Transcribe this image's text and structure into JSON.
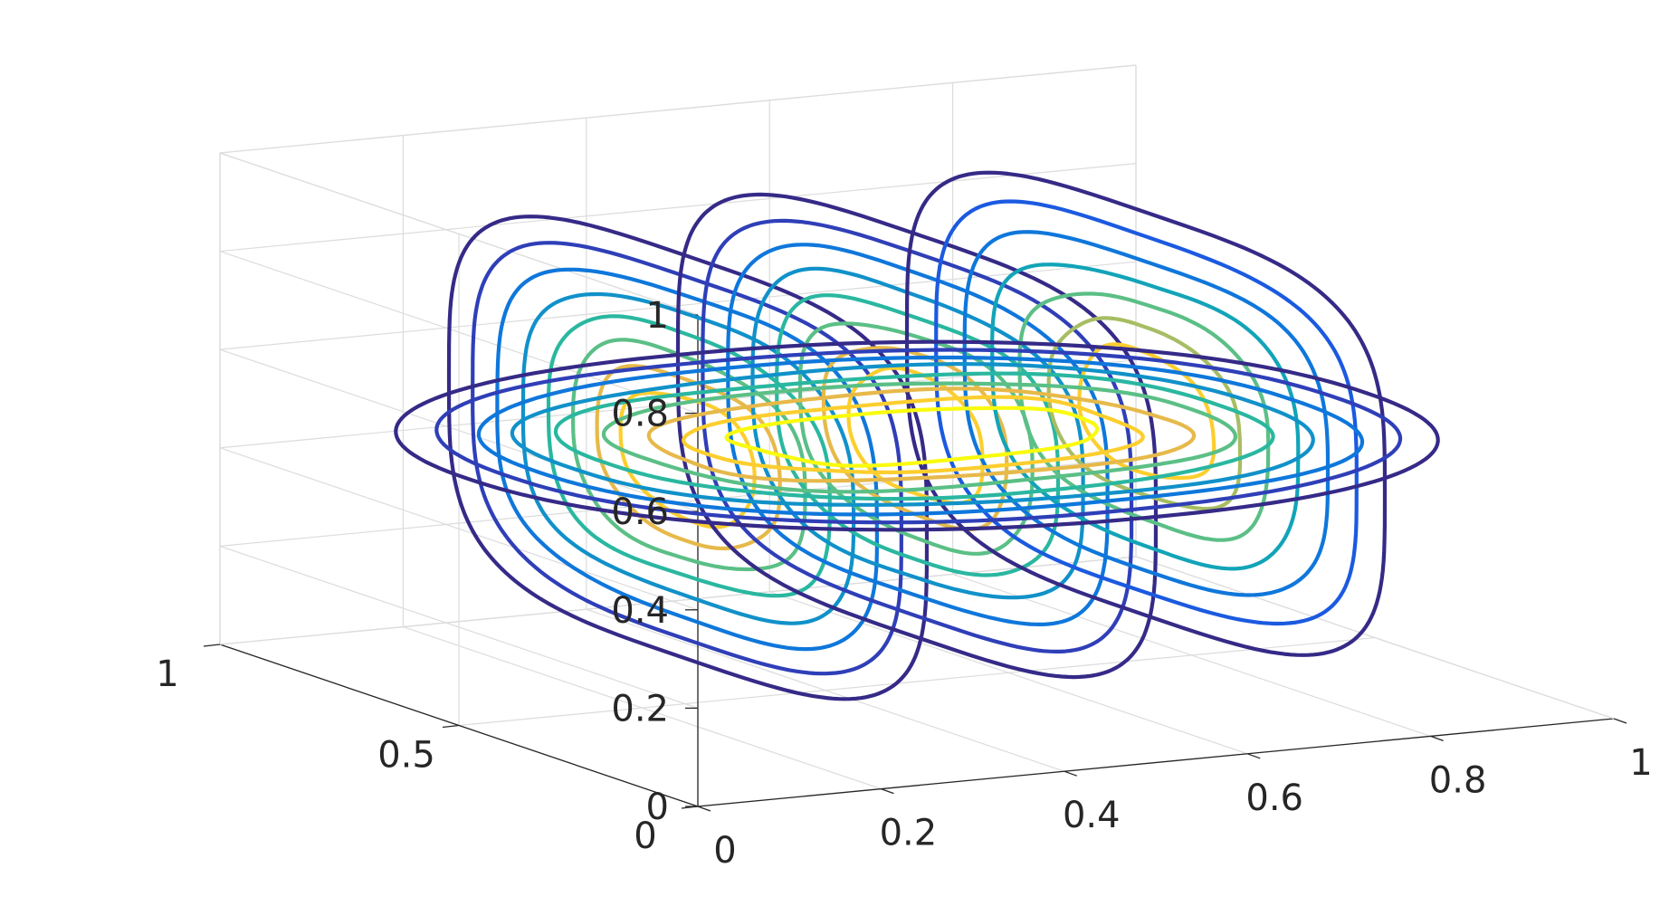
{
  "chart_data": {
    "type": "contour3d",
    "title": "",
    "xlabel": "",
    "ylabel": "",
    "zlabel": "",
    "xlim": [
      0,
      1
    ],
    "ylim": [
      0,
      1
    ],
    "zlim": [
      0,
      1
    ],
    "grid": true,
    "x_ticks": [
      "0",
      "0.2",
      "0.4",
      "0.6",
      "0.8",
      "1"
    ],
    "y_ticks": [
      "0",
      "0.5",
      "1"
    ],
    "z_ticks": [
      "0",
      "0.2",
      "0.4",
      "0.6",
      "0.8",
      "1"
    ],
    "x_tick_values": [
      0,
      0.2,
      0.4,
      0.6,
      0.8,
      1
    ],
    "y_tick_values": [
      0,
      0.5,
      1
    ],
    "z_tick_values": [
      0,
      0.2,
      0.4,
      0.6,
      0.8,
      1
    ],
    "colormap": [
      "#352a87",
      "#2f3fb8",
      "#1b5ae0",
      "#0f77db",
      "#1191c9",
      "#12a4b8",
      "#2ab7a0",
      "#5bbf86",
      "#a7bd63",
      "#e6b94a",
      "#fcce2e",
      "#f9fb0e"
    ],
    "slices": [
      {
        "plane": "x",
        "position": 0.25,
        "levels": 8
      },
      {
        "plane": "x",
        "position": 0.5,
        "levels": 8
      },
      {
        "plane": "x",
        "position": 0.75,
        "levels": 7
      },
      {
        "plane": "z",
        "position": 0.5,
        "levels": 9
      }
    ]
  }
}
